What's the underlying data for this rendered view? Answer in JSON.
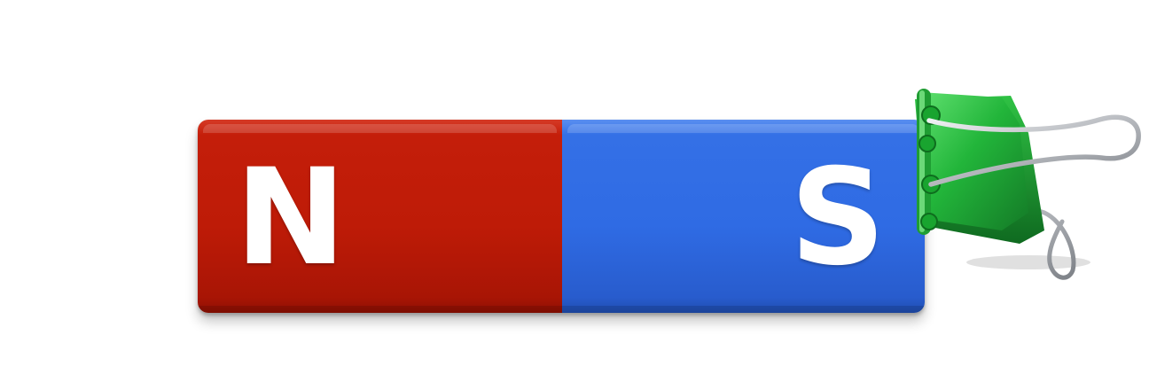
{
  "magnet": {
    "north_label": "N",
    "south_label": "S",
    "north_color": "#c41e0a",
    "south_color": "#2f6be4"
  },
  "clip": {
    "clip_color": "#22b53a",
    "wire_color": "#c9ccd0"
  },
  "icons": {
    "magnet": "bar-magnet-icon",
    "clip": "binder-clip-icon"
  }
}
